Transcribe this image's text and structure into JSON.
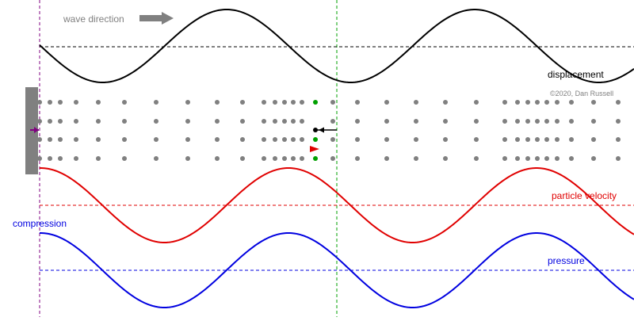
{
  "labels": {
    "wave_direction": "wave direction",
    "displacement": "displacement",
    "copyright": "©2020, Dan Russell",
    "particle_velocity": "particle velocity",
    "compression": "compression",
    "pressure": "pressure"
  },
  "colors": {
    "displacement": "#000000",
    "velocity": "#e00000",
    "pressure": "#0000e0",
    "particles": "#808080",
    "highlight_particles": "#00a000",
    "piston": "#808080",
    "piston_arrow": "#800080",
    "reference_line": "#00a000",
    "boundary_line": "#800080",
    "direction_arrow": "#808080"
  },
  "icons": {
    "direction": "right-arrow-icon",
    "displacement_marker": "left-arrow-icon",
    "velocity_marker": "red-triangle-right-icon",
    "piston_marker": "purple-arrow-right-icon"
  }
}
